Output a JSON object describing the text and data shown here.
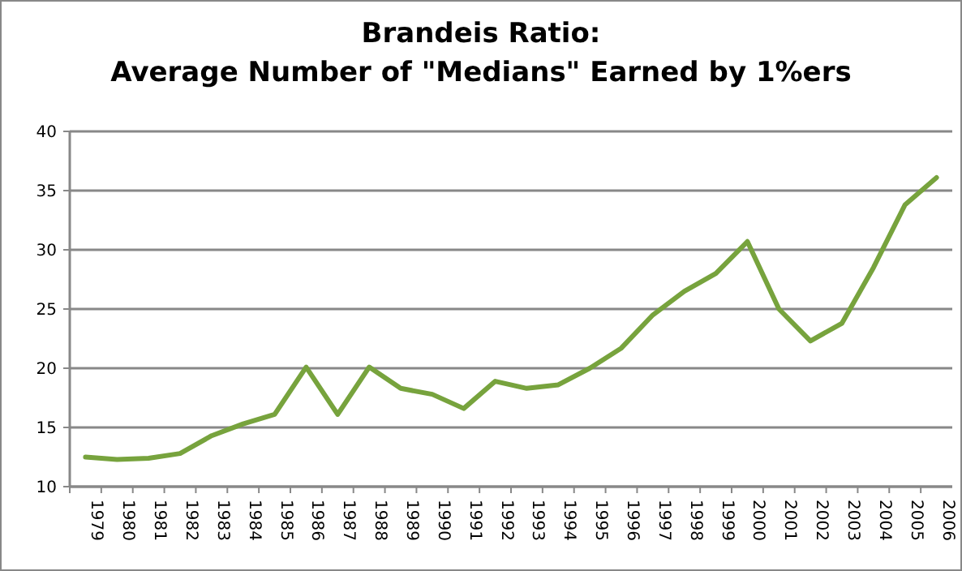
{
  "chart_data": {
    "type": "line",
    "title": "Brandeis Ratio:\nAverage Number of \"Medians\" Earned by 1%ers",
    "categories": [
      "1979",
      "1980",
      "1981",
      "1982",
      "1983",
      "1984",
      "1985",
      "1986",
      "1987",
      "1988",
      "1989",
      "1990",
      "1991",
      "1992",
      "1993",
      "1994",
      "1995",
      "1996",
      "1997",
      "1998",
      "1999",
      "2000",
      "2001",
      "2002",
      "2003",
      "2004",
      "2005",
      "2006"
    ],
    "series": [
      {
        "color": "#77a33d",
        "values": [
          12.5,
          12.3,
          12.4,
          12.8,
          14.3,
          15.3,
          16.1,
          20.1,
          16.1,
          20.1,
          18.3,
          17.8,
          16.6,
          18.9,
          18.3,
          18.6,
          20.0,
          21.7,
          24.5,
          26.5,
          28.0,
          30.7,
          25.0,
          22.3,
          23.8,
          28.5,
          33.8,
          36.1
        ]
      }
    ],
    "ylim": [
      10,
      40
    ],
    "yticks": [
      10,
      15,
      20,
      25,
      30,
      35,
      40
    ],
    "grid": "y",
    "marker": "none",
    "line_style": "solid"
  }
}
